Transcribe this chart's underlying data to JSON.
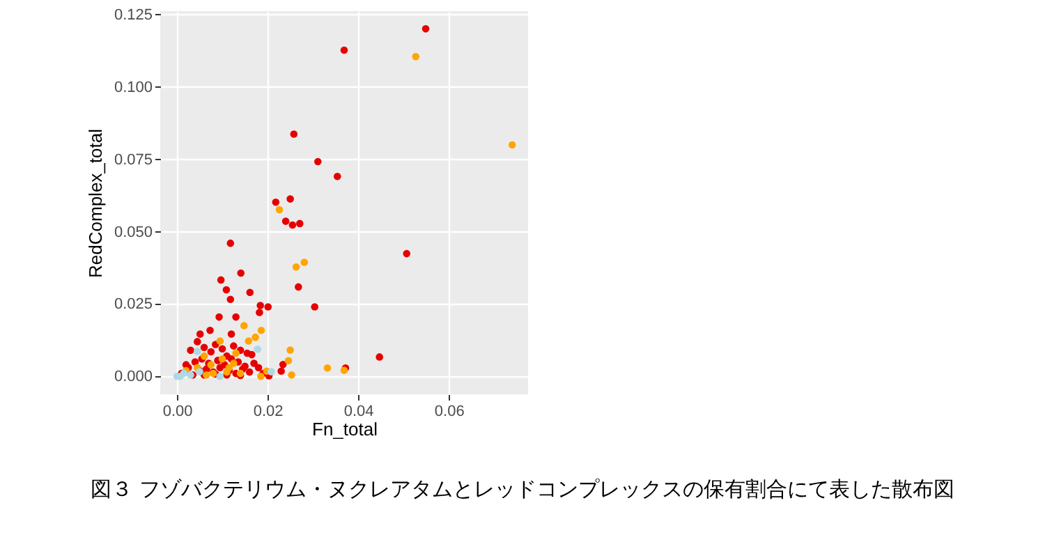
{
  "chart_data": {
    "type": "scatter",
    "xlabel": "Fn_total",
    "ylabel": "RedComplex_total",
    "xlim": [
      -0.0037,
      0.0775
    ],
    "ylim": [
      -0.0062,
      0.1262
    ],
    "xticks": [
      {
        "value": 0,
        "label": "0.00"
      },
      {
        "value": 0.02,
        "label": "0.02"
      },
      {
        "value": 0.04,
        "label": "0.04"
      },
      {
        "value": 0.06,
        "label": "0.06"
      }
    ],
    "yticks": [
      {
        "value": 0,
        "label": "0.000"
      },
      {
        "value": 0.025,
        "label": "0.025"
      },
      {
        "value": 0.05,
        "label": "0.050"
      },
      {
        "value": 0.075,
        "label": "0.075"
      },
      {
        "value": 0.1,
        "label": "0.100"
      },
      {
        "value": 0.125,
        "label": "0.125"
      }
    ],
    "grid": true,
    "marker": "circle",
    "legend": false,
    "annotations": [
      "図３ フゾバクテリウム・ヌクレアタムとレッドコンプレックスの保有割合にて表した散布図"
    ],
    "series": [
      {
        "color": "#e60000",
        "x": [
          0.0369,
          0.0549,
          0.0258,
          0.0311,
          0.0354,
          0.0218,
          0.025,
          0.024,
          0.0255,
          0.0271,
          0.0118,
          0.0507,
          0.0097,
          0.0141,
          0.0109,
          0.0118,
          0.0161,
          0.0268,
          0.0304,
          0.0184,
          0.0201,
          0.0182,
          0.0093,
          0.013,
          0.012,
          0.0073,
          0.0051,
          0.0447,
          0.0372,
          0.023,
          0.0234,
          0.0203,
          0.003,
          0.0045,
          0.006,
          0.0075,
          0.0085,
          0.01,
          0.011,
          0.0125,
          0.014,
          0.0155,
          0.0165,
          0.004,
          0.0055,
          0.007,
          0.009,
          0.0105,
          0.012,
          0.0135,
          0.015,
          0.017,
          0.018,
          0.0025,
          0.005,
          0.0065,
          0.008,
          0.0095,
          0.0115,
          0.013,
          0.0145,
          0.016,
          0.019,
          0.0035,
          0.006,
          0.0085,
          0.011,
          0.014,
          0.001,
          0.002
        ],
        "values": [
          0.1127,
          0.1201,
          0.0837,
          0.0742,
          0.0691,
          0.0602,
          0.0613,
          0.0536,
          0.0523,
          0.0528,
          0.046,
          0.0424,
          0.0333,
          0.0357,
          0.0299,
          0.0266,
          0.029,
          0.0309,
          0.024,
          0.0245,
          0.024,
          0.0221,
          0.0205,
          0.0205,
          0.0146,
          0.0159,
          0.0146,
          0.0067,
          0.0029,
          0.0018,
          0.0041,
          0.0002,
          0.009,
          0.012,
          0.01,
          0.0085,
          0.011,
          0.0095,
          0.007,
          0.0105,
          0.009,
          0.008,
          0.0075,
          0.005,
          0.006,
          0.0045,
          0.0055,
          0.004,
          0.006,
          0.005,
          0.0035,
          0.0045,
          0.003,
          0.003,
          0.002,
          0.0025,
          0.0015,
          0.003,
          0.002,
          0.001,
          0.0025,
          0.0015,
          0.001,
          0.0005,
          0.0005,
          0.0008,
          0.0005,
          0.0003,
          0.001,
          0.004
        ]
      },
      {
        "color": "#ffa500",
        "x": [
          0.0527,
          0.074,
          0.0226,
          0.0263,
          0.0281,
          0.0148,
          0.0186,
          0.0173,
          0.0158,
          0.0095,
          0.025,
          0.0246,
          0.0253,
          0.0332,
          0.0369,
          0.0185,
          0.0198,
          0.002,
          0.0045,
          0.0065,
          0.008,
          0.01,
          0.0115,
          0.013,
          0.006,
          0.011,
          0.0125,
          0.014,
          0.0075
        ],
        "values": [
          0.1105,
          0.08,
          0.0576,
          0.0378,
          0.0394,
          0.0175,
          0.0159,
          0.0135,
          0.0122,
          0.0122,
          0.0091,
          0.0054,
          0.0005,
          0.0029,
          0.0021,
          0.0,
          0.0018,
          0.002,
          0.003,
          0.0005,
          0.001,
          0.006,
          0.003,
          0.008,
          0.007,
          0.0015,
          0.0045,
          0.001,
          0.004
        ]
      },
      {
        "color": "#add8e6",
        "x": [
          0.0,
          0.0015,
          0.0007,
          0.0045,
          0.0095,
          0.0178,
          0.0208,
          0.005,
          0.003
        ],
        "values": [
          0.0,
          0.001,
          0.0,
          0.0086,
          0.0,
          0.0094,
          0.0016,
          0.0016,
          0.0005
        ]
      }
    ]
  }
}
